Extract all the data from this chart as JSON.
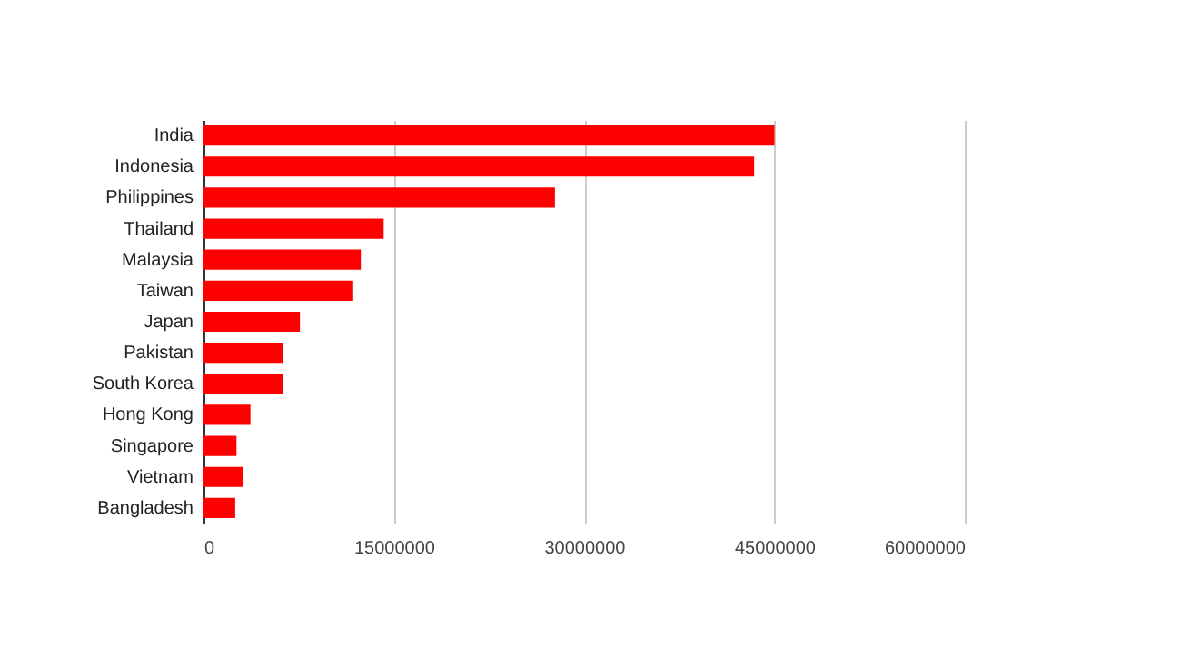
{
  "chart_data": {
    "type": "bar",
    "orientation": "horizontal",
    "categories": [
      "India",
      "Indonesia",
      "Philippines",
      "Thailand",
      "Malaysia",
      "Taiwan",
      "Japan",
      "Pakistan",
      "South Korea",
      "Hong Kong",
      "Singapore",
      "Vietnam",
      "Bangladesh"
    ],
    "values": [
      45000000,
      43400000,
      27700000,
      14200000,
      12400000,
      11800000,
      7600000,
      6300000,
      6300000,
      3700000,
      2600000,
      3100000,
      2500000
    ],
    "color": "#ff0000",
    "xlim": [
      0,
      60000000
    ],
    "xticks": [
      0,
      15000000,
      30000000,
      45000000,
      60000000
    ],
    "grid": "x"
  }
}
